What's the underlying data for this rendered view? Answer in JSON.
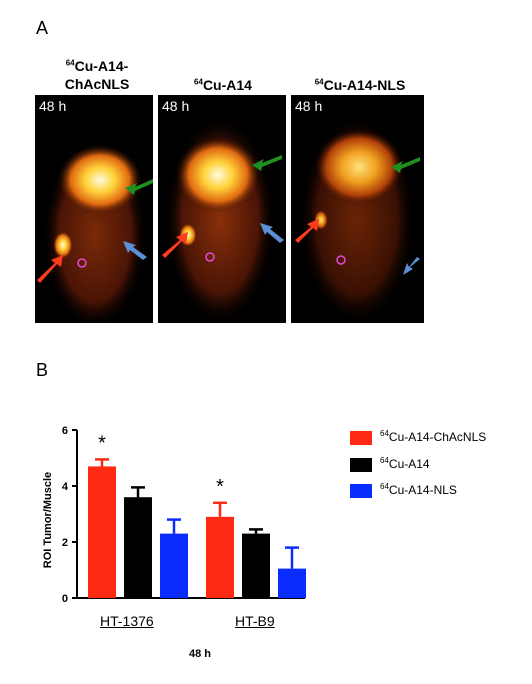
{
  "panel_a": {
    "letter": "A",
    "images": [
      {
        "title_sup": "64",
        "title_main": "Cu-A14-",
        "title_line2": "ChAcNLS",
        "time": "48 h"
      },
      {
        "title_sup": "64",
        "title_main": "Cu-A14",
        "title_line2": "",
        "time": "48 h"
      },
      {
        "title_sup": "64",
        "title_main": "Cu-A14-NLS",
        "title_line2": "",
        "time": "48 h"
      }
    ],
    "arrow_colors": {
      "red": "#ff3b1f",
      "green": "#1f8f1f",
      "blue": "#5b8fd6",
      "roi_circle": "#e24ad6"
    }
  },
  "panel_b": {
    "letter": "B",
    "group_labels": [
      "HT-1376",
      "HT-B9"
    ],
    "x_title": "48 h",
    "y_title": "ROI Tumor/Muscle",
    "legend": [
      {
        "sup": "64",
        "main": "Cu-A14-ChAcNLS",
        "color": "#ff2a12"
      },
      {
        "sup": "64",
        "main": "Cu-A14",
        "color": "#000000"
      },
      {
        "sup": "64",
        "main": "Cu-A14-NLS",
        "color": "#0a2cff"
      }
    ]
  },
  "chart_data": {
    "type": "bar",
    "categories": [
      "HT-1376",
      "HT-B9"
    ],
    "series": [
      {
        "name": "64Cu-A14-ChAcNLS",
        "values": [
          4.7,
          2.9
        ],
        "errors": [
          0.25,
          0.5
        ],
        "color": "#ff2a12"
      },
      {
        "name": "64Cu-A14",
        "values": [
          3.6,
          2.3
        ],
        "errors": [
          0.35,
          0.15
        ],
        "color": "#000000"
      },
      {
        "name": "64Cu-A14-NLS",
        "values": [
          2.3,
          1.05
        ],
        "errors": [
          0.5,
          0.75
        ],
        "color": "#0a2cff"
      }
    ],
    "annotations": [
      {
        "text": "*",
        "category": "HT-1376",
        "series": "64Cu-A14-ChAcNLS"
      },
      {
        "text": "*",
        "category": "HT-B9",
        "series": "64Cu-A14-ChAcNLS"
      }
    ],
    "xlabel": "48 h",
    "ylabel": "ROI Tumor/Muscle",
    "ylim": [
      0,
      6
    ],
    "yticks": [
      0,
      2,
      4,
      6
    ],
    "legend_position": "right"
  }
}
